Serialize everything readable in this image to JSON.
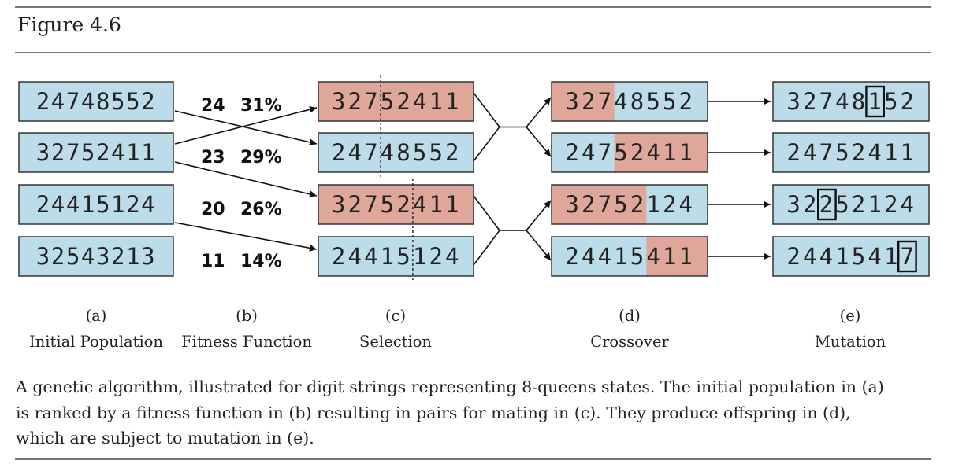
{
  "figure": {
    "title": "Figure 4.6",
    "caption_lines": [
      "A genetic algorithm, illustrated for digit strings representing 8-queens states. The initial population in (a)",
      "is ranked by a fitness function in (b) resulting in pairs for mating in (c). They produce offspring in (d),",
      "which are subject to mutation in (e)."
    ]
  },
  "colors": {
    "blue": "#bcdcea",
    "pink": "#dea799",
    "stroke": "#333333"
  },
  "columns": [
    {
      "id": "initial-population",
      "letter": "(a)",
      "name": "Initial Population"
    },
    {
      "id": "fitness-function",
      "letter": "(b)",
      "name": "Fitness Function"
    },
    {
      "id": "selection",
      "letter": "(c)",
      "name": "Selection"
    },
    {
      "id": "crossover",
      "letter": "(d)",
      "name": "Crossover"
    },
    {
      "id": "mutation",
      "letter": "(e)",
      "name": "Mutation"
    }
  ],
  "population": [
    "24748552",
    "32752411",
    "24415124",
    "32543213"
  ],
  "fitness": [
    {
      "score": "24",
      "percent": "31%"
    },
    {
      "score": "23",
      "percent": "29%"
    },
    {
      "score": "20",
      "percent": "26%"
    },
    {
      "score": "11",
      "percent": "14%"
    }
  ],
  "selection": [
    {
      "digits": "32752411",
      "color": "pink",
      "cut_after": 3
    },
    {
      "digits": "24748552",
      "color": "blue",
      "cut_after": 3
    },
    {
      "digits": "32752411",
      "color": "pink",
      "cut_after": 5
    },
    {
      "digits": "24415124",
      "color": "blue",
      "cut_after": 5
    }
  ],
  "crossover": [
    {
      "digits": "32748552",
      "pink_digits": [
        0,
        1,
        2
      ]
    },
    {
      "digits": "24752411",
      "pink_digits": [
        3,
        4,
        5,
        6,
        7
      ]
    },
    {
      "digits": "32752124",
      "pink_digits": [
        0,
        1,
        2,
        3,
        4
      ]
    },
    {
      "digits": "24415411",
      "pink_digits": [
        5,
        6,
        7
      ]
    }
  ],
  "mutation": [
    {
      "digits": "32748152",
      "mutated_digit": 5
    },
    {
      "digits": "24752411",
      "mutated_digit": null
    },
    {
      "digits": "32252124",
      "mutated_digit": 2
    },
    {
      "digits": "24415417",
      "mutated_digit": 7
    }
  ],
  "selection_links": [
    {
      "from": 0,
      "to": 1
    },
    {
      "from": 1,
      "to": 0
    },
    {
      "from": 1,
      "to": 2
    },
    {
      "from": 2,
      "to": 3
    }
  ]
}
